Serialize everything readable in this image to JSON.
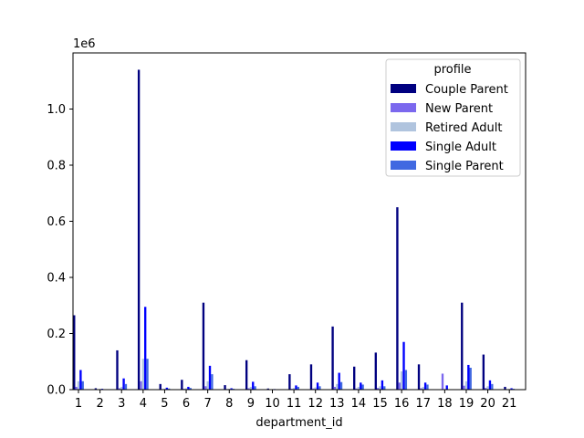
{
  "chart_data": {
    "type": "bar",
    "title": "",
    "xlabel": "department_id",
    "ylabel": "",
    "y_offset_label": "1e6",
    "ylim": [
      0,
      1.2
    ],
    "y_ticks": [
      "0.0",
      "0.2",
      "0.4",
      "0.6",
      "0.8",
      "1.0"
    ],
    "grid": false,
    "categories": [
      "1",
      "2",
      "3",
      "4",
      "5",
      "6",
      "7",
      "8",
      "9",
      "10",
      "11",
      "12",
      "13",
      "14",
      "15",
      "16",
      "17",
      "18",
      "19",
      "20",
      "21"
    ],
    "legend": {
      "title": "profile",
      "placement": "top-right"
    },
    "series": [
      {
        "name": "Couple Parent",
        "color": "#000080",
        "values": [
          0.265,
          0.005,
          0.14,
          1.14,
          0.02,
          0.035,
          0.31,
          0.016,
          0.105,
          0.004,
          0.055,
          0.09,
          0.225,
          0.082,
          0.132,
          0.65,
          0.09,
          0.0,
          0.31,
          0.125,
          0.01
        ]
      },
      {
        "name": "New Parent",
        "color": "#7B68EE",
        "values": [
          0.01,
          0.001,
          0.005,
          0.03,
          0.002,
          0.003,
          0.012,
          0.002,
          0.005,
          0.001,
          0.003,
          0.004,
          0.01,
          0.004,
          0.006,
          0.025,
          0.005,
          0.057,
          0.014,
          0.006,
          0.001
        ]
      },
      {
        "name": "Retired Adult",
        "color": "#B0C4DE",
        "values": [
          0.03,
          0.002,
          0.01,
          0.11,
          0.003,
          0.005,
          0.03,
          0.003,
          0.01,
          0.001,
          0.006,
          0.008,
          0.02,
          0.01,
          0.012,
          0.065,
          0.01,
          0.0,
          0.03,
          0.012,
          0.002
        ]
      },
      {
        "name": "Single Adult",
        "color": "#0000FF",
        "values": [
          0.07,
          0.003,
          0.04,
          0.295,
          0.007,
          0.01,
          0.085,
          0.005,
          0.028,
          0.002,
          0.015,
          0.025,
          0.06,
          0.025,
          0.033,
          0.17,
          0.025,
          0.015,
          0.088,
          0.033,
          0.005
        ]
      },
      {
        "name": "Single Parent",
        "color": "#4169E1",
        "values": [
          0.03,
          0.001,
          0.02,
          0.11,
          0.004,
          0.006,
          0.055,
          0.003,
          0.012,
          0.001,
          0.01,
          0.012,
          0.027,
          0.018,
          0.012,
          0.07,
          0.018,
          0.0,
          0.078,
          0.02,
          0.003
        ]
      }
    ]
  }
}
